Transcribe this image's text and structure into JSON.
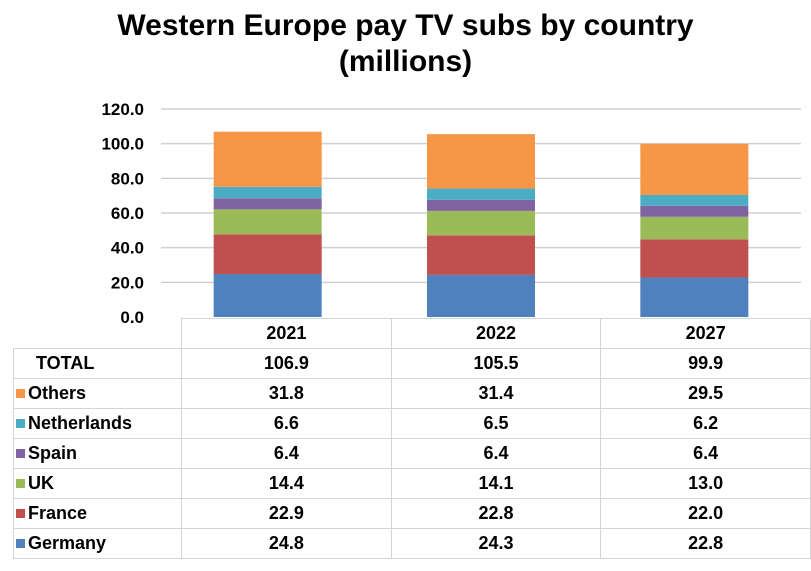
{
  "chart_data": {
    "type": "bar",
    "stacked": true,
    "title": "Western Europe pay TV subs by country (millions)",
    "title_lines": [
      "Western Europe pay TV subs by country",
      "(millions)"
    ],
    "categories": [
      "2021",
      "2022",
      "2027"
    ],
    "ylim": [
      0,
      120
    ],
    "yticks": [
      "0.0",
      "20.0",
      "40.0",
      "60.0",
      "80.0",
      "100.0",
      "120.0"
    ],
    "grid": true,
    "legend": "data-table",
    "total_label": "TOTAL",
    "totals": [
      "106.9",
      "105.5",
      "99.9"
    ],
    "series": [
      {
        "name": "Germany",
        "color": "#4F81BD",
        "values": [
          24.8,
          24.3,
          22.8
        ]
      },
      {
        "name": "France",
        "color": "#C0504D",
        "values": [
          22.9,
          22.8,
          22.0
        ]
      },
      {
        "name": "UK",
        "color": "#9BBB59",
        "values": [
          14.4,
          14.1,
          13.0
        ]
      },
      {
        "name": "Spain",
        "color": "#8064A2",
        "values": [
          6.4,
          6.4,
          6.4
        ]
      },
      {
        "name": "Netherlands",
        "color": "#4BACC6",
        "values": [
          6.6,
          6.5,
          6.2
        ]
      },
      {
        "name": "Others",
        "color": "#F79646",
        "values": [
          31.8,
          31.4,
          29.5
        ]
      }
    ]
  }
}
